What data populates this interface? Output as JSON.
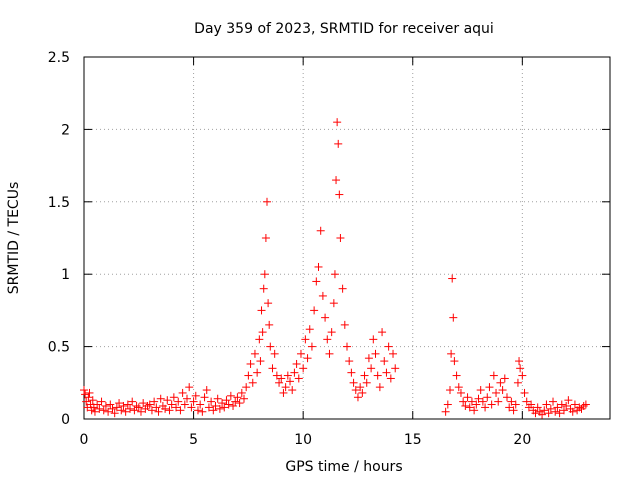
{
  "chart_data": {
    "type": "scatter",
    "title": "Day 359 of 2023, SRMTID for receiver aqui",
    "xlabel": "GPS time / hours",
    "ylabel": "SRMTID / TECUs",
    "xlim": [
      0,
      24
    ],
    "ylim": [
      0,
      2.5
    ],
    "x_ticks": [
      0,
      5,
      10,
      15,
      20
    ],
    "x_tick_labels": [
      "0",
      "5",
      "10",
      "15",
      "20"
    ],
    "y_ticks": [
      0,
      0.5,
      1,
      1.5,
      2,
      2.5
    ],
    "y_tick_labels": [
      "0",
      "0.5",
      "1",
      "1.5",
      "2",
      "2.5"
    ],
    "grid": true,
    "marker": "plus",
    "marker_color": "#ff0000",
    "series": [
      {
        "name": "SRMTID",
        "points": [
          [
            0.0,
            0.2
          ],
          [
            0.05,
            0.17
          ],
          [
            0.1,
            0.12
          ],
          [
            0.15,
            0.08
          ],
          [
            0.2,
            0.15
          ],
          [
            0.25,
            0.18
          ],
          [
            0.3,
            0.1
          ],
          [
            0.35,
            0.06
          ],
          [
            0.4,
            0.13
          ],
          [
            0.45,
            0.08
          ],
          [
            0.5,
            0.05
          ],
          [
            0.6,
            0.1
          ],
          [
            0.7,
            0.07
          ],
          [
            0.8,
            0.12
          ],
          [
            0.9,
            0.06
          ],
          [
            1.0,
            0.09
          ],
          [
            1.1,
            0.05
          ],
          [
            1.2,
            0.1
          ],
          [
            1.3,
            0.07
          ],
          [
            1.4,
            0.04
          ],
          [
            1.5,
            0.08
          ],
          [
            1.6,
            0.11
          ],
          [
            1.7,
            0.06
          ],
          [
            1.8,
            0.09
          ],
          [
            1.9,
            0.05
          ],
          [
            2.0,
            0.1
          ],
          [
            2.1,
            0.07
          ],
          [
            2.2,
            0.12
          ],
          [
            2.3,
            0.06
          ],
          [
            2.4,
            0.09
          ],
          [
            2.5,
            0.08
          ],
          [
            2.6,
            0.05
          ],
          [
            2.7,
            0.11
          ],
          [
            2.8,
            0.07
          ],
          [
            2.9,
            0.09
          ],
          [
            3.0,
            0.1
          ],
          [
            3.1,
            0.06
          ],
          [
            3.2,
            0.12
          ],
          [
            3.3,
            0.08
          ],
          [
            3.4,
            0.05
          ],
          [
            3.5,
            0.14
          ],
          [
            3.6,
            0.09
          ],
          [
            3.7,
            0.07
          ],
          [
            3.8,
            0.13
          ],
          [
            3.9,
            0.06
          ],
          [
            4.0,
            0.1
          ],
          [
            4.1,
            0.15
          ],
          [
            4.2,
            0.08
          ],
          [
            4.3,
            0.12
          ],
          [
            4.4,
            0.06
          ],
          [
            4.5,
            0.18
          ],
          [
            4.6,
            0.1
          ],
          [
            4.7,
            0.14
          ],
          [
            4.8,
            0.22
          ],
          [
            4.9,
            0.08
          ],
          [
            5.0,
            0.12
          ],
          [
            5.1,
            0.16
          ],
          [
            5.2,
            0.06
          ],
          [
            5.3,
            0.1
          ],
          [
            5.4,
            0.05
          ],
          [
            5.5,
            0.15
          ],
          [
            5.6,
            0.2
          ],
          [
            5.7,
            0.08
          ],
          [
            5.8,
            0.12
          ],
          [
            5.9,
            0.06
          ],
          [
            6.0,
            0.09
          ],
          [
            6.1,
            0.14
          ],
          [
            6.2,
            0.07
          ],
          [
            6.3,
            0.11
          ],
          [
            6.4,
            0.08
          ],
          [
            6.5,
            0.13
          ],
          [
            6.6,
            0.1
          ],
          [
            6.7,
            0.16
          ],
          [
            6.8,
            0.09
          ],
          [
            6.9,
            0.12
          ],
          [
            7.0,
            0.15
          ],
          [
            7.1,
            0.11
          ],
          [
            7.2,
            0.18
          ],
          [
            7.3,
            0.14
          ],
          [
            7.4,
            0.22
          ],
          [
            7.5,
            0.3
          ],
          [
            7.6,
            0.38
          ],
          [
            7.7,
            0.25
          ],
          [
            7.8,
            0.45
          ],
          [
            7.9,
            0.32
          ],
          [
            8.0,
            0.55
          ],
          [
            8.05,
            0.4
          ],
          [
            8.1,
            0.75
          ],
          [
            8.15,
            0.6
          ],
          [
            8.2,
            0.9
          ],
          [
            8.25,
            1.0
          ],
          [
            8.3,
            1.25
          ],
          [
            8.35,
            1.5
          ],
          [
            8.4,
            0.8
          ],
          [
            8.45,
            0.65
          ],
          [
            8.5,
            0.5
          ],
          [
            8.6,
            0.35
          ],
          [
            8.7,
            0.45
          ],
          [
            8.8,
            0.3
          ],
          [
            8.9,
            0.25
          ],
          [
            9.0,
            0.28
          ],
          [
            9.1,
            0.18
          ],
          [
            9.2,
            0.22
          ],
          [
            9.3,
            0.3
          ],
          [
            9.4,
            0.26
          ],
          [
            9.5,
            0.2
          ],
          [
            9.6,
            0.32
          ],
          [
            9.7,
            0.38
          ],
          [
            9.8,
            0.28
          ],
          [
            9.9,
            0.45
          ],
          [
            10.0,
            0.35
          ],
          [
            10.1,
            0.55
          ],
          [
            10.2,
            0.42
          ],
          [
            10.3,
            0.62
          ],
          [
            10.4,
            0.5
          ],
          [
            10.5,
            0.75
          ],
          [
            10.6,
            0.95
          ],
          [
            10.7,
            1.05
          ],
          [
            10.8,
            1.3
          ],
          [
            10.9,
            0.85
          ],
          [
            11.0,
            0.7
          ],
          [
            11.1,
            0.55
          ],
          [
            11.2,
            0.45
          ],
          [
            11.3,
            0.6
          ],
          [
            11.4,
            0.8
          ],
          [
            11.45,
            1.0
          ],
          [
            11.5,
            1.65
          ],
          [
            11.55,
            2.05
          ],
          [
            11.6,
            1.9
          ],
          [
            11.65,
            1.55
          ],
          [
            11.7,
            1.25
          ],
          [
            11.8,
            0.9
          ],
          [
            11.9,
            0.65
          ],
          [
            12.0,
            0.5
          ],
          [
            12.1,
            0.4
          ],
          [
            12.2,
            0.32
          ],
          [
            12.3,
            0.25
          ],
          [
            12.4,
            0.2
          ],
          [
            12.5,
            0.15
          ],
          [
            12.6,
            0.22
          ],
          [
            12.7,
            0.18
          ],
          [
            12.8,
            0.3
          ],
          [
            12.9,
            0.25
          ],
          [
            13.0,
            0.42
          ],
          [
            13.1,
            0.35
          ],
          [
            13.2,
            0.55
          ],
          [
            13.3,
            0.45
          ],
          [
            13.4,
            0.3
          ],
          [
            13.5,
            0.22
          ],
          [
            13.6,
            0.6
          ],
          [
            13.7,
            0.4
          ],
          [
            13.8,
            0.32
          ],
          [
            13.9,
            0.5
          ],
          [
            14.0,
            0.28
          ],
          [
            14.1,
            0.45
          ],
          [
            14.2,
            0.35
          ],
          [
            16.5,
            0.05
          ],
          [
            16.6,
            0.1
          ],
          [
            16.7,
            0.2
          ],
          [
            16.75,
            0.45
          ],
          [
            16.8,
            0.97
          ],
          [
            16.85,
            0.7
          ],
          [
            16.9,
            0.4
          ],
          [
            17.0,
            0.3
          ],
          [
            17.1,
            0.22
          ],
          [
            17.2,
            0.18
          ],
          [
            17.3,
            0.12
          ],
          [
            17.4,
            0.09
          ],
          [
            17.5,
            0.15
          ],
          [
            17.6,
            0.08
          ],
          [
            17.7,
            0.12
          ],
          [
            17.8,
            0.06
          ],
          [
            17.9,
            0.1
          ],
          [
            18.0,
            0.14
          ],
          [
            18.1,
            0.2
          ],
          [
            18.2,
            0.12
          ],
          [
            18.3,
            0.08
          ],
          [
            18.4,
            0.15
          ],
          [
            18.5,
            0.22
          ],
          [
            18.6,
            0.1
          ],
          [
            18.7,
            0.3
          ],
          [
            18.8,
            0.18
          ],
          [
            18.9,
            0.12
          ],
          [
            19.0,
            0.25
          ],
          [
            19.1,
            0.2
          ],
          [
            19.2,
            0.28
          ],
          [
            19.3,
            0.15
          ],
          [
            19.4,
            0.08
          ],
          [
            19.5,
            0.12
          ],
          [
            19.6,
            0.06
          ],
          [
            19.7,
            0.1
          ],
          [
            19.8,
            0.25
          ],
          [
            19.85,
            0.4
          ],
          [
            19.9,
            0.35
          ],
          [
            20.0,
            0.3
          ],
          [
            20.1,
            0.18
          ],
          [
            20.2,
            0.12
          ],
          [
            20.3,
            0.08
          ],
          [
            20.4,
            0.1
          ],
          [
            20.5,
            0.06
          ],
          [
            20.6,
            0.04
          ],
          [
            20.7,
            0.08
          ],
          [
            20.8,
            0.05
          ],
          [
            20.9,
            0.03
          ],
          [
            21.0,
            0.06
          ],
          [
            21.1,
            0.1
          ],
          [
            21.2,
            0.04
          ],
          [
            21.3,
            0.07
          ],
          [
            21.4,
            0.12
          ],
          [
            21.5,
            0.05
          ],
          [
            21.6,
            0.08
          ],
          [
            21.7,
            0.04
          ],
          [
            21.8,
            0.1
          ],
          [
            21.9,
            0.06
          ],
          [
            22.0,
            0.09
          ],
          [
            22.1,
            0.13
          ],
          [
            22.2,
            0.07
          ],
          [
            22.3,
            0.05
          ],
          [
            22.4,
            0.1
          ],
          [
            22.5,
            0.06
          ],
          [
            22.6,
            0.08
          ],
          [
            22.7,
            0.07
          ],
          [
            22.8,
            0.09
          ],
          [
            22.9,
            0.1
          ]
        ]
      }
    ]
  }
}
